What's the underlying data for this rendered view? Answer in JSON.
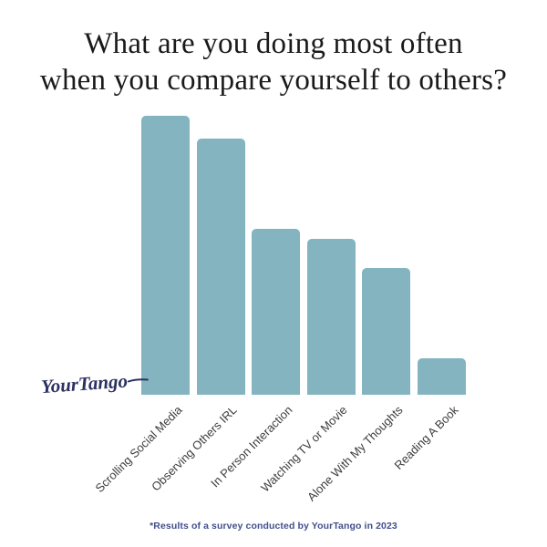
{
  "title": {
    "line1": "What are you doing most often",
    "line2": "when you compare yourself to others?",
    "color": "#1a1a1a"
  },
  "chart_data": {
    "type": "bar",
    "title": "What are you doing most often when you compare yourself to others?",
    "categories": [
      "Scrolling Social Media",
      "Observing Others IRL",
      "In Person Interaction",
      "Watching TV or Movie",
      "Alone With My Thoughts",
      "Reading A Book"
    ],
    "values": [
      306,
      281,
      182,
      171,
      139,
      40
    ],
    "values_pct_of_max": [
      100,
      92,
      59,
      56,
      45,
      13
    ],
    "value_note": "chart shows no y-axis or numeric labels; values are relative bar heights estimated in pixels",
    "xlabel": "",
    "ylabel": "",
    "ylim": [
      0,
      320
    ],
    "grid": false,
    "legend": false,
    "y_axis_visible": false,
    "tick_label_rotation_deg": 45,
    "bar_color": "#83b4c0",
    "label_color": "#3d3d3d"
  },
  "branding": {
    "logo_text": "YourTango",
    "logo_color": "#2c3160"
  },
  "footer": {
    "text": "*Results of a survey conducted by YourTango in 2023",
    "color": "#414f8d"
  }
}
